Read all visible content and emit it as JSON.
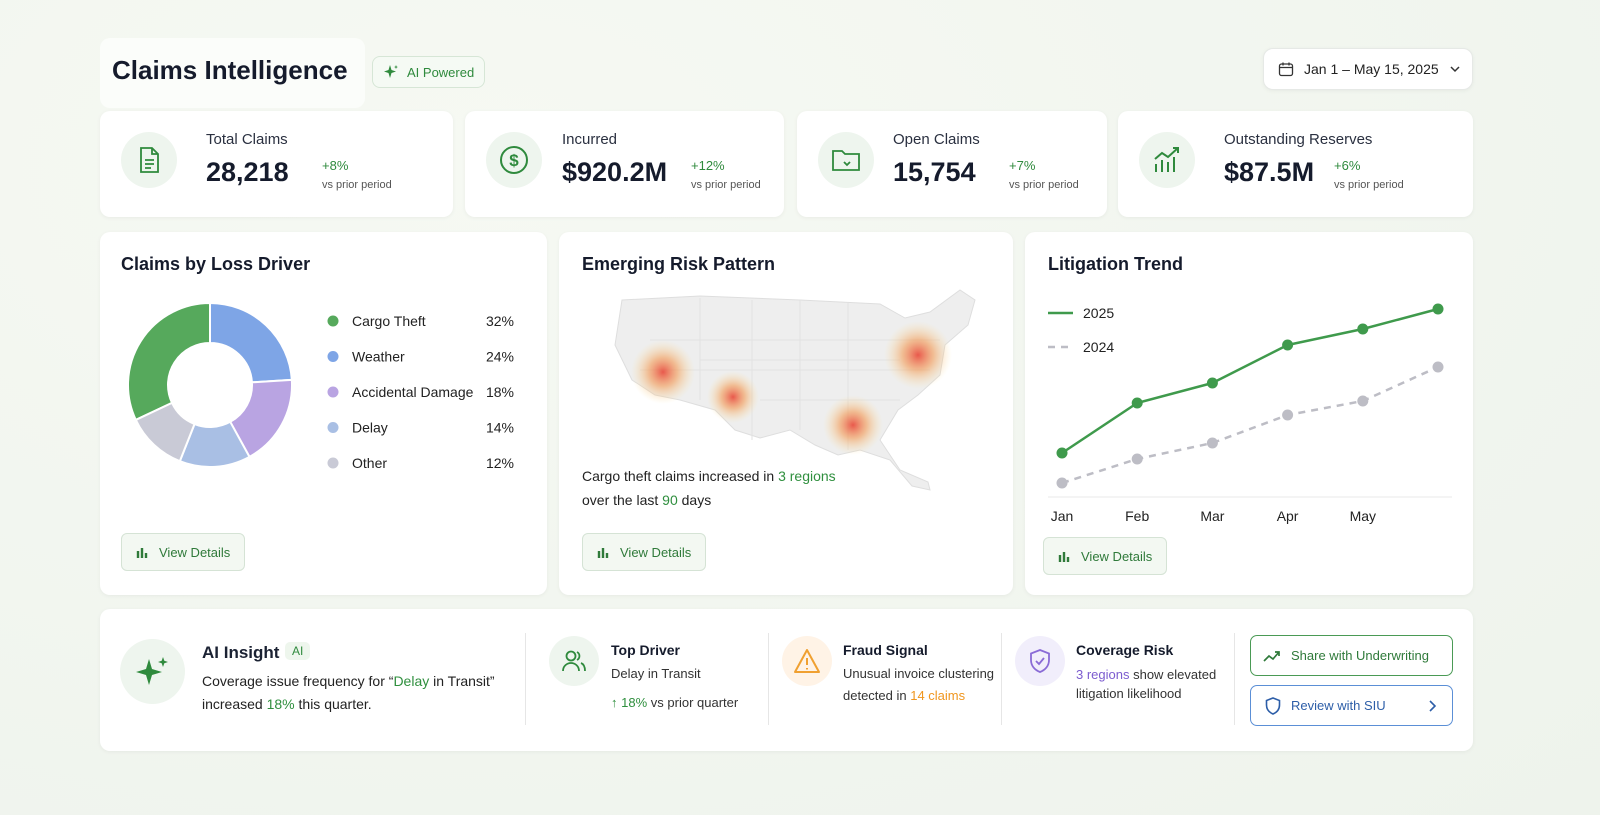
{
  "header": {
    "title": "Claims Intelligence",
    "badge": "AI Powered",
    "date_range": "Jan 1 – May 15, 2025"
  },
  "kpis": [
    {
      "label": "Total Claims",
      "value": "28,218",
      "change": "+8%",
      "note": "vs prior period"
    },
    {
      "label": "Incurred",
      "value": "$920.2M",
      "change": "+12%",
      "note": "vs prior period"
    },
    {
      "label": "Open Claims",
      "value": "15,754",
      "change": "+7%",
      "note": "vs prior period"
    },
    {
      "label": "Outstanding Reserves",
      "value": "$87.5M",
      "change": "+6%",
      "note": "vs prior period"
    }
  ],
  "chart_data": [
    {
      "type": "pie",
      "title": "Claims by Loss Driver",
      "categories": [
        "Cargo Theft",
        "Weather",
        "Accidental Damage",
        "Delay",
        "Other"
      ],
      "values": [
        32,
        24,
        18,
        14,
        12
      ],
      "value_labels": [
        "32%",
        "24%",
        "18%",
        "14%",
        "12%"
      ],
      "colors": [
        "#56a95c",
        "#7ea5e6",
        "#b9a4e2",
        "#a9bfe4",
        "#c9cad6"
      ]
    },
    {
      "type": "line",
      "title": "Litigation Trend",
      "categories": [
        "Jan",
        "Feb",
        "Mar",
        "Apr",
        "May",
        null
      ],
      "ylim": [
        0,
        100
      ],
      "series": [
        {
          "name": "2025",
          "color": "#3f9a4c",
          "style": "solid",
          "values": [
            22,
            47,
            57,
            76,
            84,
            94
          ]
        },
        {
          "name": "2024",
          "color": "#bdbdc5",
          "style": "dashed",
          "values": [
            7,
            19,
            27,
            41,
            48,
            65
          ]
        }
      ]
    }
  ],
  "risk_map": {
    "title": "Emerging Risk Pattern",
    "summary": [
      "Cargo theft claims increased in ",
      "3 regions",
      "over the last ",
      "90",
      " days"
    ]
  },
  "panel_buttons": [
    "View Details",
    "View Details",
    "View Details"
  ],
  "insight": {
    "title": "AI Insight",
    "badge": "AI",
    "text": [
      "Coverage issue frequency for “",
      "Delay",
      " in Transit”",
      " increased ",
      "18%",
      " this quarter."
    ]
  },
  "signals": [
    {
      "title": "Top Driver",
      "text": [
        "Delay in Transit"
      ],
      "change": "18%",
      "note": "vs prior quarter"
    },
    {
      "title": "Fraud Signal",
      "text": [
        "Unusual invoice clustering",
        "detected in ",
        "14 claims"
      ]
    },
    {
      "title": "Coverage Risk",
      "text": [
        "3 regions",
        " show elevated",
        "litigation likelihood"
      ]
    }
  ],
  "actions": [
    "Share with Underwriting",
    "Review with SIU"
  ]
}
